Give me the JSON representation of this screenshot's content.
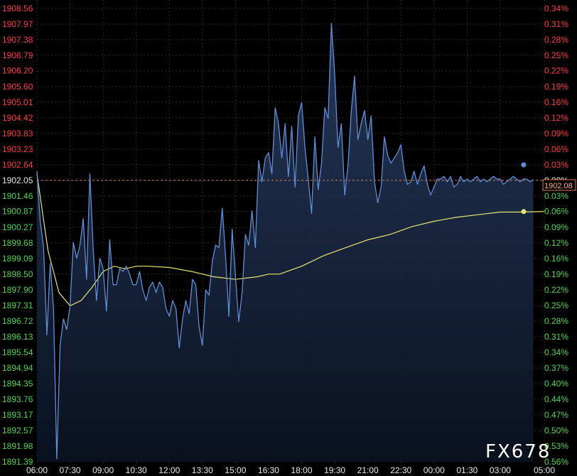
{
  "chart_data": {
    "type": "line",
    "title": "",
    "xlabel": "",
    "ylabel": "",
    "ylim": [
      1891.39,
      1908.56
    ],
    "reference_price": 1902.05,
    "last_price": "1902.08",
    "grid": true,
    "watermark": "FX678",
    "colors": {
      "background": "#000000",
      "grid": "#2a2a2a",
      "price_line": "#5f8fd8",
      "price_fill": "#1a2a44",
      "average_line": "#e6e66e",
      "reference_line": "#e07b4a",
      "up_label": "#ff3b3b",
      "down_label": "#4cd64c",
      "x_label": "#e8e8e8",
      "last_price_box": "#e07b4a"
    },
    "y_left_ticks": [
      {
        "label": "1908.56",
        "value": 1908.56,
        "dir": "up"
      },
      {
        "label": "1907.97",
        "value": 1907.97,
        "dir": "up"
      },
      {
        "label": "1907.38",
        "value": 1907.38,
        "dir": "up"
      },
      {
        "label": "1906.79",
        "value": 1906.79,
        "dir": "up"
      },
      {
        "label": "1906.20",
        "value": 1906.2,
        "dir": "up"
      },
      {
        "label": "1905.60",
        "value": 1905.6,
        "dir": "up"
      },
      {
        "label": "1905.01",
        "value": 1905.01,
        "dir": "up"
      },
      {
        "label": "1904.42",
        "value": 1904.42,
        "dir": "up"
      },
      {
        "label": "1903.83",
        "value": 1903.83,
        "dir": "up"
      },
      {
        "label": "1903.23",
        "value": 1903.23,
        "dir": "up"
      },
      {
        "label": "1902.64",
        "value": 1902.64,
        "dir": "up"
      },
      {
        "label": "1902.05",
        "value": 1902.05,
        "dir": "flat"
      },
      {
        "label": "1901.46",
        "value": 1901.46,
        "dir": "down"
      },
      {
        "label": "1900.87",
        "value": 1900.87,
        "dir": "down"
      },
      {
        "label": "1900.27",
        "value": 1900.27,
        "dir": "down"
      },
      {
        "label": "1899.68",
        "value": 1899.68,
        "dir": "down"
      },
      {
        "label": "1899.09",
        "value": 1899.09,
        "dir": "down"
      },
      {
        "label": "1898.50",
        "value": 1898.5,
        "dir": "down"
      },
      {
        "label": "1897.90",
        "value": 1897.9,
        "dir": "down"
      },
      {
        "label": "1897.31",
        "value": 1897.31,
        "dir": "down"
      },
      {
        "label": "1896.72",
        "value": 1896.72,
        "dir": "down"
      },
      {
        "label": "1896.13",
        "value": 1896.13,
        "dir": "down"
      },
      {
        "label": "1895.54",
        "value": 1895.54,
        "dir": "down"
      },
      {
        "label": "1894.94",
        "value": 1894.94,
        "dir": "down"
      },
      {
        "label": "1894.35",
        "value": 1894.35,
        "dir": "down"
      },
      {
        "label": "1893.76",
        "value": 1893.76,
        "dir": "down"
      },
      {
        "label": "1893.17",
        "value": 1893.17,
        "dir": "down"
      },
      {
        "label": "1892.57",
        "value": 1892.57,
        "dir": "down"
      },
      {
        "label": "1891.98",
        "value": 1891.98,
        "dir": "down"
      },
      {
        "label": "1891.39",
        "value": 1891.39,
        "dir": "down"
      }
    ],
    "y_right_ticks": [
      {
        "label": "0.34%",
        "dir": "up"
      },
      {
        "label": "0.31%",
        "dir": "up"
      },
      {
        "label": "0.28%",
        "dir": "up"
      },
      {
        "label": "0.25%",
        "dir": "up"
      },
      {
        "label": "0.22%",
        "dir": "up"
      },
      {
        "label": "0.19%",
        "dir": "up"
      },
      {
        "label": "0.16%",
        "dir": "up"
      },
      {
        "label": "0.12%",
        "dir": "up"
      },
      {
        "label": "0.09%",
        "dir": "up"
      },
      {
        "label": "0.06%",
        "dir": "up"
      },
      {
        "label": "0.03%",
        "dir": "up"
      },
      {
        "label": "0.00%",
        "dir": "flat"
      },
      {
        "label": "0.03%",
        "dir": "down"
      },
      {
        "label": "0.06%",
        "dir": "down"
      },
      {
        "label": "0.09%",
        "dir": "down"
      },
      {
        "label": "0.12%",
        "dir": "down"
      },
      {
        "label": "0.16%",
        "dir": "down"
      },
      {
        "label": "0.19%",
        "dir": "down"
      },
      {
        "label": "0.22%",
        "dir": "down"
      },
      {
        "label": "0.25%",
        "dir": "down"
      },
      {
        "label": "0.28%",
        "dir": "down"
      },
      {
        "label": "0.31%",
        "dir": "down"
      },
      {
        "label": "0.34%",
        "dir": "down"
      },
      {
        "label": "0.37%",
        "dir": "down"
      },
      {
        "label": "0.40%",
        "dir": "down"
      },
      {
        "label": "0.44%",
        "dir": "down"
      },
      {
        "label": "0.47%",
        "dir": "down"
      },
      {
        "label": "0.50%",
        "dir": "down"
      },
      {
        "label": "0.53%",
        "dir": "down"
      },
      {
        "label": "0.56%",
        "dir": "down"
      }
    ],
    "x_ticks": [
      "06:00",
      "07:30",
      "09:00",
      "10:30",
      "12:00",
      "13:30",
      "15:00",
      "16:30",
      "18:00",
      "19:30",
      "21:00",
      "22:30",
      "00:00",
      "01:30",
      "03:00",
      "05:00"
    ],
    "x_tick_hours": [
      0,
      1.5,
      3,
      4.5,
      6,
      7.5,
      9,
      10.5,
      12,
      13.5,
      15,
      16.5,
      18,
      19.5,
      21,
      23
    ],
    "x_range_hours": [
      0,
      23
    ],
    "price_series_hours": [
      0,
      0.15,
      0.3,
      0.45,
      0.6,
      0.75,
      0.9,
      1.05,
      1.2,
      1.35,
      1.5,
      1.65,
      1.8,
      1.95,
      2.1,
      2.25,
      2.4,
      2.55,
      2.7,
      2.85,
      3.0,
      3.15,
      3.3,
      3.45,
      3.6,
      3.75,
      3.9,
      4.05,
      4.2,
      4.35,
      4.5,
      4.65,
      4.8,
      4.95,
      5.1,
      5.25,
      5.4,
      5.55,
      5.7,
      5.85,
      6.0,
      6.15,
      6.3,
      6.45,
      6.6,
      6.75,
      6.9,
      7.05,
      7.2,
      7.35,
      7.5,
      7.65,
      7.8,
      7.95,
      8.1,
      8.25,
      8.4,
      8.55,
      8.7,
      8.85,
      9.0,
      9.15,
      9.3,
      9.45,
      9.6,
      9.75,
      9.9,
      10.05,
      10.2,
      10.35,
      10.5,
      10.65,
      10.8,
      10.95,
      11.1,
      11.25,
      11.4,
      11.55,
      11.7,
      11.85,
      12.0,
      12.15,
      12.3,
      12.45,
      12.6,
      12.75,
      12.9,
      13.05,
      13.2,
      13.35,
      13.5,
      13.65,
      13.8,
      13.95,
      14.1,
      14.25,
      14.4,
      14.55,
      14.7,
      14.85,
      15.0,
      15.15,
      15.3,
      15.45,
      15.6,
      15.75,
      15.9,
      16.05,
      16.2,
      16.35,
      16.5,
      16.65,
      16.8,
      16.95,
      17.1,
      17.25,
      17.4,
      17.55,
      17.7,
      17.85,
      18.0,
      18.15,
      18.3,
      18.45,
      18.6,
      18.75,
      18.9,
      19.05,
      19.2,
      19.35,
      19.5,
      19.65,
      19.8,
      19.95,
      20.1,
      20.25,
      20.4,
      20.55,
      20.7,
      20.85,
      21.0,
      21.15,
      21.3,
      21.45,
      21.6,
      21.75,
      21.9,
      22.05,
      22.2,
      22.35,
      22.5,
      22.65,
      22.8,
      22.95
    ],
    "price_series": [
      1902.4,
      1900.5,
      1899.5,
      1896.2,
      1898.9,
      1897.2,
      1891.5,
      1895.8,
      1896.8,
      1896.4,
      1897.3,
      1899.7,
      1899.1,
      1899.6,
      1900.6,
      1898.3,
      1902.3,
      1899.4,
      1897.5,
      1899.1,
      1898.7,
      1897.1,
      1899.8,
      1898.1,
      1898.1,
      1898.7,
      1898.6,
      1898.8,
      1898.5,
      1898.1,
      1898.1,
      1898.6,
      1897.9,
      1897.5,
      1898.0,
      1898.2,
      1897.8,
      1898.2,
      1898.0,
      1897.2,
      1896.9,
      1897.5,
      1897.2,
      1895.7,
      1896.8,
      1897.5,
      1897.0,
      1898.3,
      1898.1,
      1896.5,
      1895.8,
      1897.9,
      1897.7,
      1899.0,
      1899.6,
      1899.5,
      1901.0,
      1899.2,
      1896.9,
      1900.2,
      1898.4,
      1896.7,
      1897.8,
      1900.0,
      1899.6,
      1900.9,
      1899.5,
      1902.8,
      1902.0,
      1902.9,
      1903.1,
      1902.3,
      1904.8,
      1904.2,
      1902.9,
      1904.2,
      1902.2,
      1904.1,
      1901.8,
      1904.5,
      1905.0,
      1903.3,
      1902.1,
      1900.8,
      1903.7,
      1901.7,
      1902.7,
      1904.8,
      1904.4,
      1908.0,
      1906.0,
      1903.3,
      1904.2,
      1901.5,
      1902.6,
      1904.7,
      1906.0,
      1903.6,
      1904.2,
      1904.7,
      1903.6,
      1904.5,
      1902.0,
      1901.2,
      1901.8,
      1903.7,
      1903.0,
      1902.7,
      1902.9,
      1903.1,
      1903.4,
      1902.4,
      1901.9,
      1902.0,
      1902.4,
      1901.9,
      1902.3,
      1902.6,
      1901.9,
      1901.5,
      1901.8,
      1902.1,
      1902.1,
      1902.2,
      1902.0,
      1902.2,
      1901.8,
      1901.9,
      1902.2,
      1902.0,
      1902.1,
      1902.0,
      1902.1,
      1902.2,
      1902.0,
      1902.1,
      1902.0,
      1902.1,
      1902.2,
      1902.1,
      1902.1,
      1901.9,
      1902.0,
      1902.1,
      1902.2,
      1902.1,
      1902.0,
      1902.1,
      1902.1,
      1902.0,
      1902.08
    ],
    "average_series_hours": [
      0,
      0.5,
      1.0,
      1.5,
      2.0,
      2.5,
      3.0,
      3.5,
      4.0,
      4.5,
      5.0,
      6.0,
      7.0,
      8.0,
      9.0,
      10.0,
      10.5,
      11.0,
      12.0,
      13.0,
      14.0,
      15.0,
      16.0,
      17.0,
      18.0,
      19.0,
      20.0,
      21.0,
      22.0,
      23.0
    ],
    "average_series": [
      1902.3,
      1899.4,
      1897.8,
      1897.3,
      1897.5,
      1898.0,
      1898.6,
      1898.8,
      1898.7,
      1898.8,
      1898.8,
      1898.75,
      1898.6,
      1898.4,
      1898.3,
      1898.4,
      1898.5,
      1898.5,
      1898.8,
      1899.2,
      1899.5,
      1899.8,
      1900.0,
      1900.3,
      1900.5,
      1900.65,
      1900.75,
      1900.85,
      1900.85,
      1900.87
    ]
  }
}
